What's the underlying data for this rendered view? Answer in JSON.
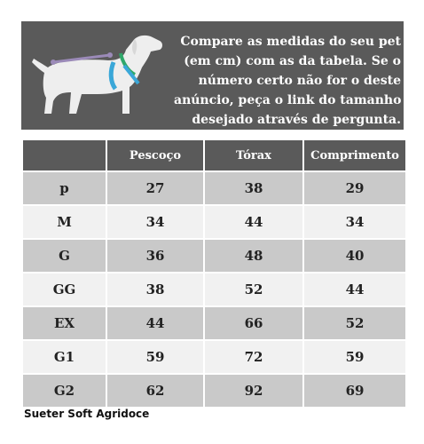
{
  "banner": {
    "lines": [
      "Compare as medidas do seu pet",
      "(em cm) com as da tabela. Se o",
      "número certo não for o deste",
      "anúncio, peça o link do tamanho",
      "desejado através de pergunta."
    ],
    "icon": "dog-measurement-icon"
  },
  "table": {
    "headers": [
      "",
      "Pescoço",
      "Tórax",
      "Comprimento"
    ],
    "rows": [
      [
        "p",
        "27",
        "38",
        "29"
      ],
      [
        "M",
        "34",
        "44",
        "34"
      ],
      [
        "G",
        "36",
        "48",
        "40"
      ],
      [
        "GG",
        "38",
        "52",
        "44"
      ],
      [
        "EX",
        "44",
        "66",
        "52"
      ],
      [
        "G1",
        "59",
        "72",
        "59"
      ],
      [
        "G2",
        "62",
        "92",
        "69"
      ]
    ]
  },
  "footer": {
    "caption": "Sueter Soft Agridoce"
  },
  "colors": {
    "banner_bg": "#5a5a5a",
    "row_dark": "#c9c9c9",
    "row_light": "#f1f1f1",
    "measure_blue": "#3aa7d8"
  }
}
